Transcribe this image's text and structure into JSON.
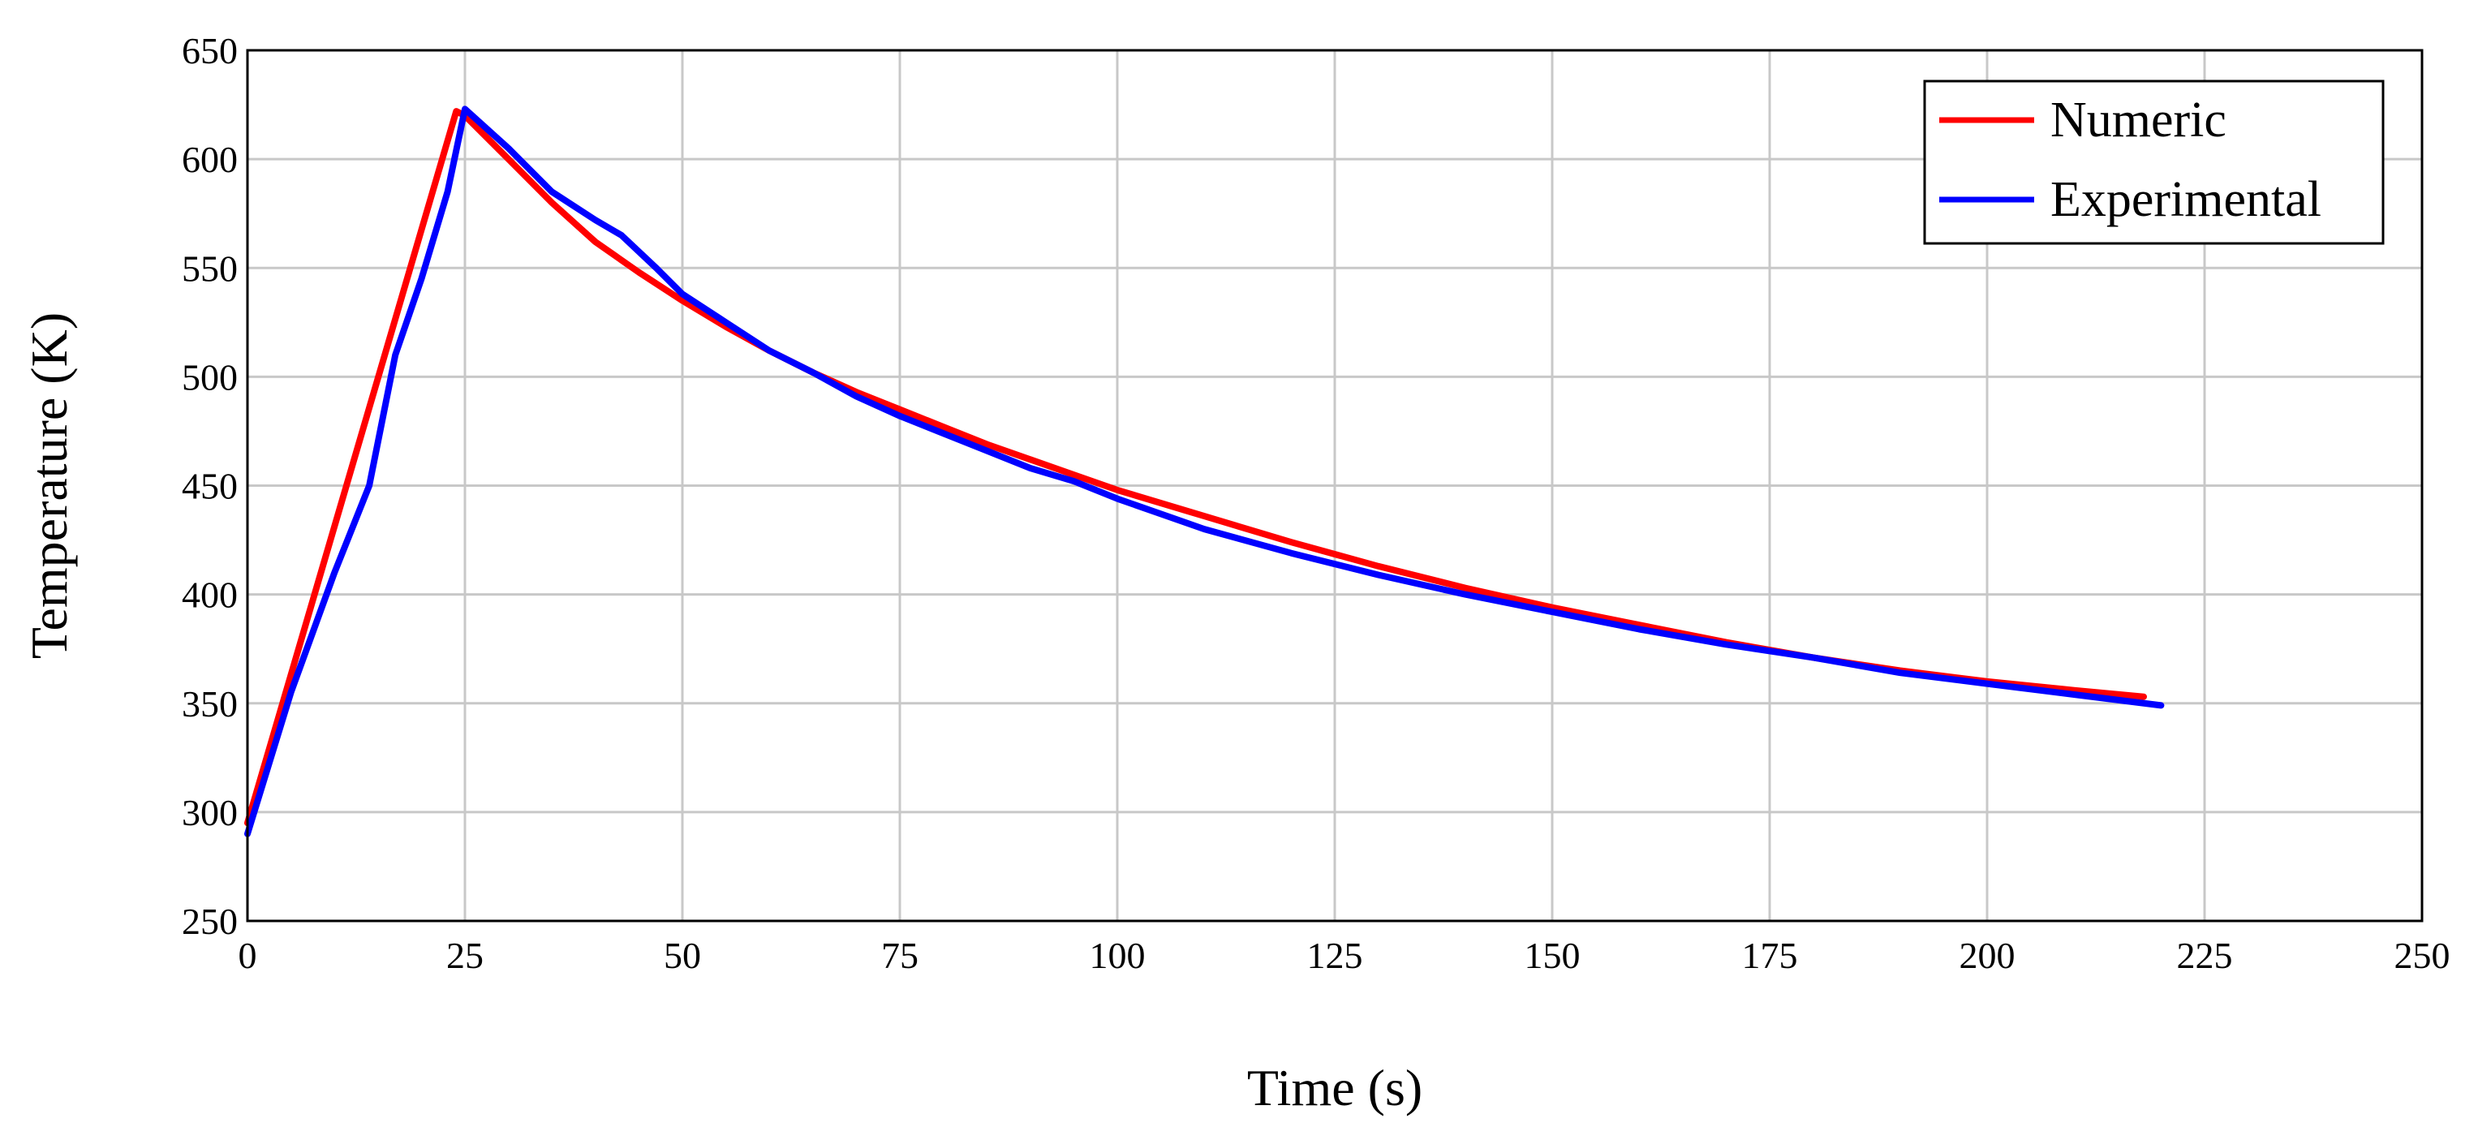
{
  "chart_data": {
    "type": "line",
    "xlabel": "Time (s)",
    "ylabel": "Temperature (K)",
    "xlim": [
      0,
      250
    ],
    "ylim": [
      250,
      650
    ],
    "xticks": [
      0,
      25,
      50,
      75,
      100,
      125,
      150,
      175,
      200,
      225,
      250
    ],
    "yticks": [
      250,
      300,
      350,
      400,
      450,
      500,
      550,
      600,
      650
    ],
    "grid": true,
    "legend_position": "top-right",
    "colors": {
      "frame": "#000000",
      "grid": "#c8c8c8"
    },
    "series": [
      {
        "name": "Numeric",
        "color": "#ff0000",
        "x": [
          0,
          24,
          25,
          30,
          35,
          40,
          45,
          50,
          55,
          60,
          65,
          70,
          75,
          80,
          85,
          90,
          95,
          100,
          110,
          120,
          130,
          140,
          150,
          160,
          170,
          180,
          190,
          200,
          210,
          218
        ],
        "y": [
          295,
          622,
          620,
          600,
          580,
          562,
          548,
          535,
          523,
          512,
          502,
          493,
          485,
          477,
          469,
          462,
          455,
          448,
          436,
          424,
          413,
          403,
          394,
          386,
          378,
          371,
          365,
          360,
          356,
          353
        ]
      },
      {
        "name": "Experimental",
        "color": "#0000ff",
        "x": [
          0,
          5,
          10,
          14,
          17,
          20,
          23,
          25,
          30,
          35,
          40,
          43,
          47,
          50,
          55,
          60,
          65,
          70,
          75,
          80,
          85,
          90,
          95,
          100,
          110,
          120,
          130,
          140,
          150,
          160,
          170,
          180,
          190,
          200,
          210,
          220
        ],
        "y": [
          290,
          355,
          410,
          450,
          510,
          545,
          585,
          623,
          605,
          585,
          572,
          565,
          550,
          538,
          525,
          512,
          502,
          491,
          482,
          474,
          466,
          458,
          452,
          444,
          430,
          419,
          409,
          400,
          392,
          384,
          377,
          371,
          364,
          359,
          354,
          349
        ]
      }
    ]
  }
}
